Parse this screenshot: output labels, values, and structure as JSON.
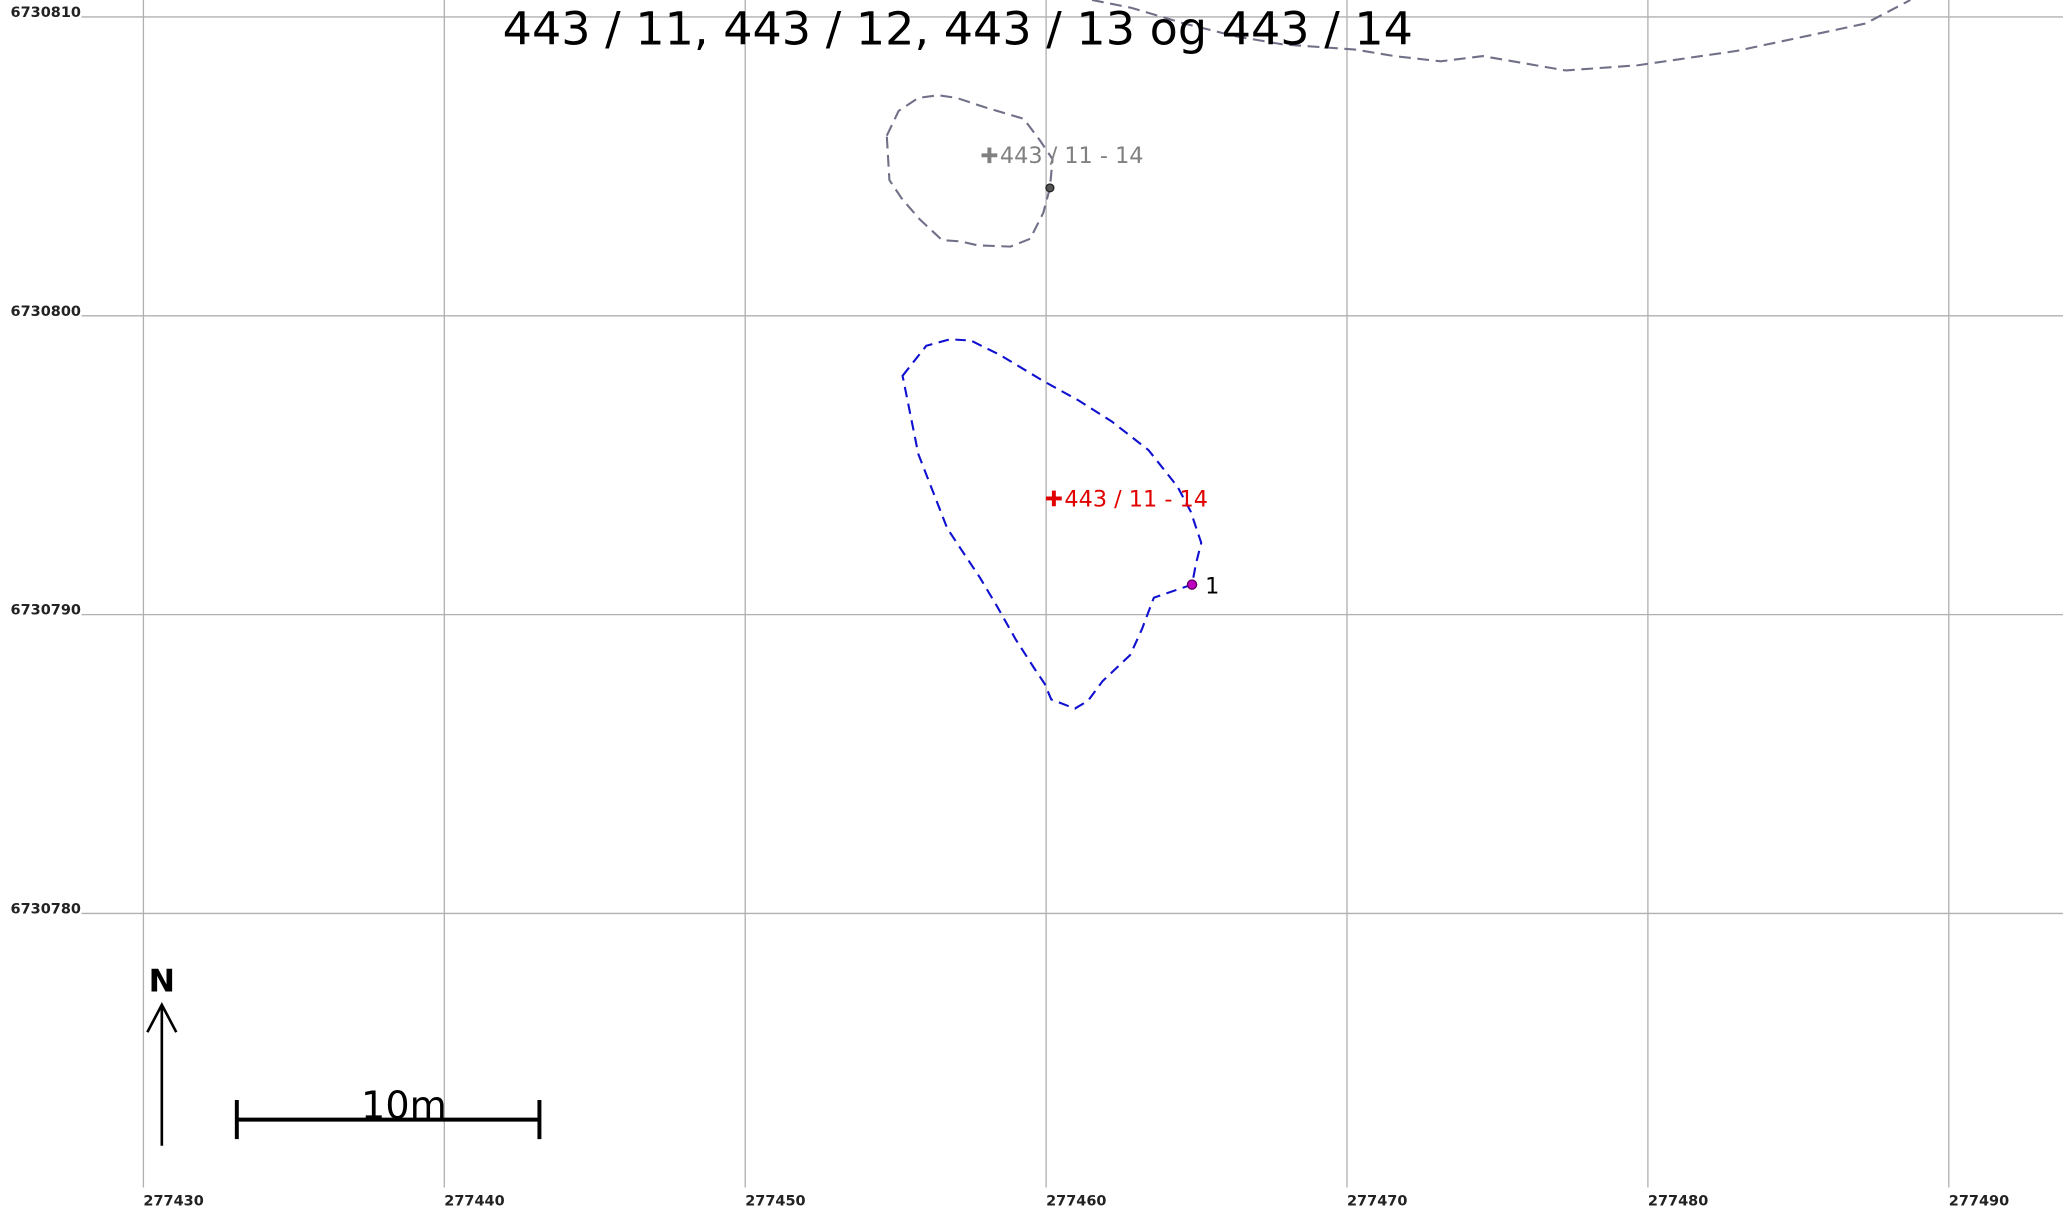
{
  "title": "443 / 11, 443 / 12, 443 / 13 og 443 / 14",
  "x_labels": [
    277430,
    277440,
    277450,
    277460,
    277470,
    277480,
    277490
  ],
  "y_labels": [
    6730810,
    6730800,
    6730790,
    6730780
  ],
  "parcels": [
    {
      "label": "443 / 11 - 14",
      "color": "#808080"
    },
    {
      "label": "443 / 11 - 14",
      "color": "#e00000"
    }
  ],
  "point_label": "1",
  "north": "N",
  "scale_bar": "10m"
}
